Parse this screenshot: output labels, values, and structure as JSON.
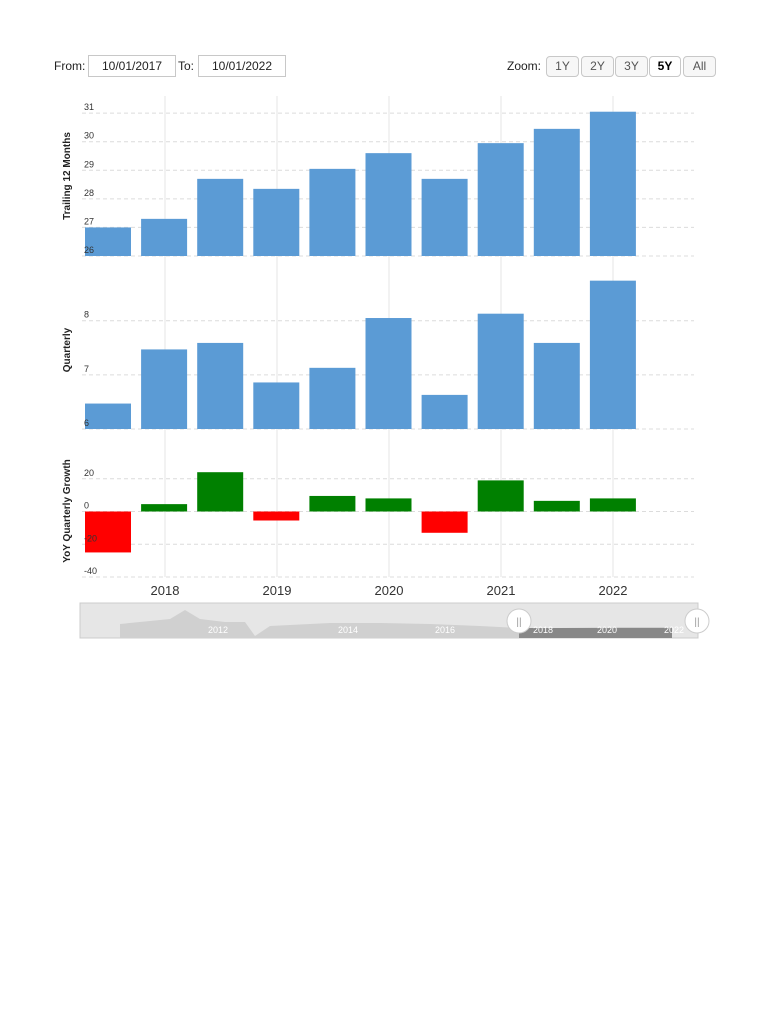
{
  "toolbar": {
    "from_label": "From:",
    "from_value": "10/01/2017",
    "to_label": "To:",
    "to_value": "10/01/2022",
    "zoom_label": "Zoom:",
    "zoom_options": [
      "1Y",
      "2Y",
      "3Y",
      "5Y",
      "All"
    ],
    "zoom_selected": "5Y"
  },
  "colors": {
    "bar": "#5b9bd5",
    "positive": "#008000",
    "negative": "#ff0000",
    "grid": "#dcdcdc"
  },
  "chart_data": [
    {
      "type": "bar",
      "ylabel": "Trailing 12 Months",
      "yticks": [
        26,
        27,
        28,
        29,
        30,
        31
      ],
      "ylim": [
        26,
        31.6
      ],
      "values": [
        27.0,
        27.3,
        28.7,
        28.35,
        29.05,
        29.6,
        28.7,
        29.95,
        30.45,
        31.05
      ]
    },
    {
      "type": "bar",
      "ylabel": "Quarterly",
      "yticks": [
        6,
        7,
        8
      ],
      "ylim": [
        6,
        8.9
      ],
      "values": [
        6.47,
        7.47,
        7.59,
        6.86,
        7.13,
        8.05,
        6.63,
        8.13,
        7.59,
        8.74
      ]
    },
    {
      "type": "bar",
      "ylabel": "YoY Quarterly Growth",
      "yticks": [
        -40,
        -20,
        0,
        20
      ],
      "ylim": [
        -40,
        40
      ],
      "values": [
        -25.0,
        4.5,
        24.0,
        -5.5,
        9.5,
        8.0,
        -13.0,
        19.0,
        6.5,
        8.0
      ]
    }
  ],
  "x_axis": {
    "tick_labels": [
      "2018",
      "2019",
      "2020",
      "2021",
      "2022"
    ]
  },
  "navigator": {
    "tick_labels": [
      "2012",
      "2014",
      "2016",
      "2018",
      "2020",
      "2022"
    ],
    "handle_glyph": "||"
  }
}
